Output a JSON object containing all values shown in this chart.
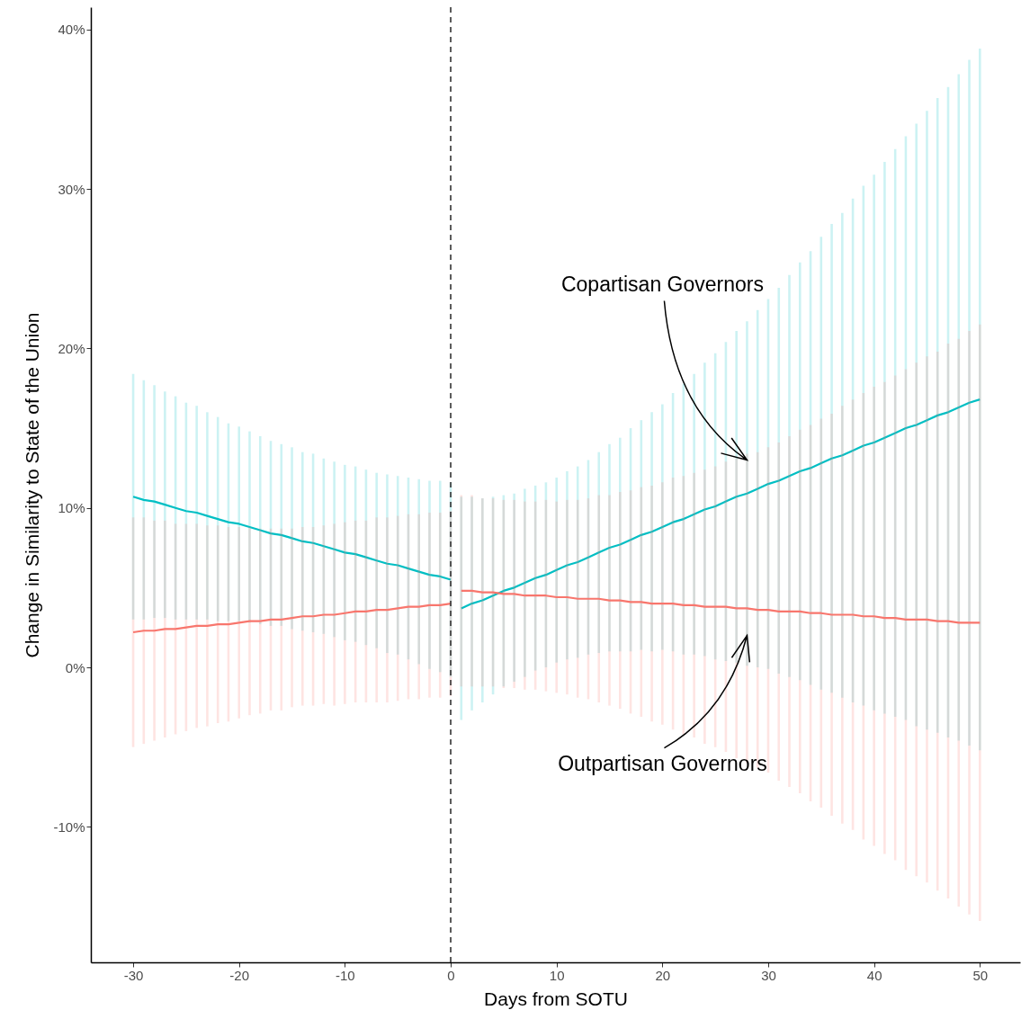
{
  "chart_data": {
    "type": "line",
    "xlabel": "Days from SOTU",
    "ylabel": "Change in Similarity to State of the Union",
    "xlim": [
      -34,
      53.8
    ],
    "ylim": [
      -18.5,
      41.4
    ],
    "xticks": [
      -30,
      -20,
      -10,
      0,
      10,
      20,
      30,
      40,
      50
    ],
    "yticks": [
      {
        "value": -10,
        "label": "-10%"
      },
      {
        "value": 0,
        "label": "0%"
      },
      {
        "value": 10,
        "label": "10%"
      },
      {
        "value": 20,
        "label": "20%"
      },
      {
        "value": 30,
        "label": "30%"
      },
      {
        "value": 40,
        "label": "40%"
      }
    ],
    "grid": false,
    "ref_lines": [
      {
        "axis": "x",
        "value": 0,
        "color": "#333333",
        "line_style": "dashed"
      }
    ],
    "annotations": [
      {
        "text": "Copartisan Governors",
        "x": 28,
        "y": 13.0
      },
      {
        "text": "Outpartisan Governors",
        "x": 28,
        "y": 2.0
      }
    ],
    "series": [
      {
        "color": "#00bfc4",
        "x": [
          -30,
          -29,
          -28,
          -27,
          -26,
          -25,
          -24,
          -23,
          -22,
          -21,
          -20,
          -19,
          -18,
          -17,
          -16,
          -15,
          -14,
          -13,
          -12,
          -11,
          -10,
          -9,
          -8,
          -7,
          -6,
          -5,
          -4,
          -3,
          -2,
          -1,
          0
        ],
        "values": [
          10.7,
          10.5,
          10.4,
          10.2,
          10.0,
          9.8,
          9.7,
          9.5,
          9.3,
          9.1,
          9.0,
          8.8,
          8.6,
          8.4,
          8.3,
          8.1,
          7.9,
          7.8,
          7.6,
          7.4,
          7.2,
          7.1,
          6.9,
          6.7,
          6.5,
          6.4,
          6.2,
          6.0,
          5.8,
          5.7,
          5.5
        ],
        "errors": [
          7.7,
          7.5,
          7.3,
          7.1,
          7.0,
          6.8,
          6.7,
          6.5,
          6.4,
          6.2,
          6.1,
          6.0,
          5.9,
          5.8,
          5.7,
          5.7,
          5.6,
          5.6,
          5.5,
          5.5,
          5.5,
          5.5,
          5.5,
          5.5,
          5.6,
          5.6,
          5.7,
          5.8,
          5.9,
          6.0,
          6.1
        ]
      },
      {
        "color": "#f8766d",
        "x": [
          -30,
          -29,
          -28,
          -27,
          -26,
          -25,
          -24,
          -23,
          -22,
          -21,
          -20,
          -19,
          -18,
          -17,
          -16,
          -15,
          -14,
          -13,
          -12,
          -11,
          -10,
          -9,
          -8,
          -7,
          -6,
          -5,
          -4,
          -3,
          -2,
          -1,
          0
        ],
        "values": [
          2.2,
          2.3,
          2.3,
          2.4,
          2.4,
          2.5,
          2.6,
          2.6,
          2.7,
          2.7,
          2.8,
          2.9,
          2.9,
          3.0,
          3.0,
          3.1,
          3.2,
          3.2,
          3.3,
          3.3,
          3.4,
          3.5,
          3.5,
          3.6,
          3.6,
          3.7,
          3.8,
          3.8,
          3.9,
          3.9,
          4.0
        ],
        "errors": [
          7.2,
          7.1,
          6.9,
          6.8,
          6.6,
          6.5,
          6.4,
          6.3,
          6.2,
          6.1,
          6.0,
          5.9,
          5.8,
          5.7,
          5.7,
          5.6,
          5.6,
          5.6,
          5.6,
          5.7,
          5.7,
          5.7,
          5.7,
          5.8,
          5.8,
          5.8,
          5.8,
          5.8,
          5.8,
          5.8,
          5.8
        ]
      },
      {
        "color": "#00bfc4",
        "x": [
          1,
          2,
          3,
          4,
          5,
          6,
          7,
          8,
          9,
          10,
          11,
          12,
          13,
          14,
          15,
          16,
          17,
          18,
          19,
          20,
          21,
          22,
          23,
          24,
          25,
          26,
          27,
          28,
          29,
          30,
          31,
          32,
          33,
          34,
          35,
          36,
          37,
          38,
          39,
          40,
          41,
          42,
          43,
          44,
          45,
          46,
          47,
          48,
          49,
          50
        ],
        "values": [
          3.7,
          4.0,
          4.2,
          4.5,
          4.8,
          5.0,
          5.3,
          5.6,
          5.8,
          6.1,
          6.4,
          6.6,
          6.9,
          7.2,
          7.5,
          7.7,
          8.0,
          8.3,
          8.5,
          8.8,
          9.1,
          9.3,
          9.6,
          9.9,
          10.1,
          10.4,
          10.7,
          10.9,
          11.2,
          11.5,
          11.7,
          12.0,
          12.3,
          12.5,
          12.8,
          13.1,
          13.3,
          13.6,
          13.9,
          14.1,
          14.4,
          14.7,
          15.0,
          15.2,
          15.5,
          15.8,
          16.0,
          16.3,
          16.6,
          16.8
        ],
        "errors": [
          7.0,
          6.7,
          6.4,
          6.2,
          6.0,
          5.9,
          5.9,
          5.8,
          5.8,
          5.8,
          5.9,
          6.0,
          6.1,
          6.3,
          6.5,
          6.7,
          7.0,
          7.2,
          7.5,
          7.7,
          8.1,
          8.5,
          8.8,
          9.2,
          9.6,
          10.0,
          10.4,
          10.8,
          11.2,
          11.6,
          12.1,
          12.6,
          13.1,
          13.6,
          14.2,
          14.7,
          15.2,
          15.8,
          16.3,
          16.8,
          17.3,
          17.8,
          18.3,
          18.9,
          19.4,
          19.9,
          20.4,
          20.9,
          21.5,
          22.0
        ]
      },
      {
        "color": "#f8766d",
        "x": [
          1,
          2,
          3,
          4,
          5,
          6,
          7,
          8,
          9,
          10,
          11,
          12,
          13,
          14,
          15,
          16,
          17,
          18,
          19,
          20,
          21,
          22,
          23,
          24,
          25,
          26,
          27,
          28,
          29,
          30,
          31,
          32,
          33,
          34,
          35,
          36,
          37,
          38,
          39,
          40,
          41,
          42,
          43,
          44,
          45,
          46,
          47,
          48,
          49,
          50
        ],
        "values": [
          4.8,
          4.8,
          4.7,
          4.7,
          4.6,
          4.6,
          4.5,
          4.5,
          4.5,
          4.4,
          4.4,
          4.3,
          4.3,
          4.3,
          4.2,
          4.2,
          4.1,
          4.1,
          4.0,
          4.0,
          4.0,
          3.9,
          3.9,
          3.8,
          3.8,
          3.8,
          3.7,
          3.7,
          3.6,
          3.6,
          3.5,
          3.5,
          3.5,
          3.4,
          3.4,
          3.3,
          3.3,
          3.3,
          3.2,
          3.2,
          3.1,
          3.1,
          3.0,
          3.0,
          3.0,
          2.9,
          2.9,
          2.8,
          2.8,
          2.8
        ],
        "errors": [
          6.0,
          6.0,
          5.9,
          5.9,
          5.9,
          5.9,
          5.9,
          5.9,
          6.0,
          6.0,
          6.1,
          6.2,
          6.3,
          6.5,
          6.6,
          6.8,
          7.0,
          7.2,
          7.4,
          7.6,
          7.9,
          8.1,
          8.3,
          8.6,
          8.8,
          9.1,
          9.4,
          9.7,
          9.9,
          10.2,
          10.6,
          11.0,
          11.4,
          11.8,
          12.2,
          12.6,
          13.1,
          13.5,
          14.0,
          14.4,
          14.8,
          15.2,
          15.7,
          16.1,
          16.5,
          16.9,
          17.4,
          17.8,
          18.3,
          18.7
        ]
      }
    ]
  }
}
